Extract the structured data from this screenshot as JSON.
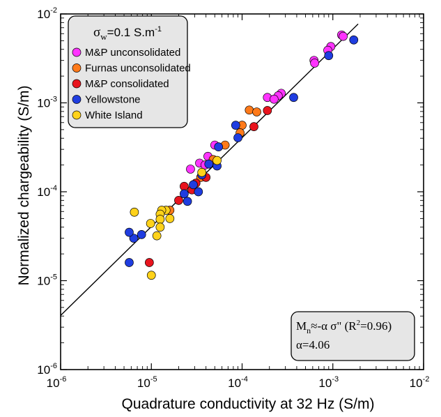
{
  "chart_data": {
    "type": "scatter",
    "x_scale": "log",
    "y_scale": "log",
    "xlim": [
      1e-06,
      0.01
    ],
    "ylim": [
      1e-06,
      0.01
    ],
    "x_ticks": [
      {
        "base": "10",
        "exp": "-6"
      },
      {
        "base": "10",
        "exp": "-5"
      },
      {
        "base": "10",
        "exp": "-4"
      },
      {
        "base": "10",
        "exp": "-3"
      },
      {
        "base": "10",
        "exp": "-2"
      }
    ],
    "y_ticks": [
      {
        "base": "10",
        "exp": "-6"
      },
      {
        "base": "10",
        "exp": "-5"
      },
      {
        "base": "10",
        "exp": "-4"
      },
      {
        "base": "10",
        "exp": "-3"
      },
      {
        "base": "10",
        "exp": "-2"
      }
    ],
    "xlabel": "Quadrature conductivity at 32 Hz (S/m)",
    "ylabel": "Normalized chargeability (S/m)",
    "legend": {
      "title_symbol": "σ",
      "title_sub": "w",
      "title_rest": "=0.1 S.m",
      "title_sup": "-1",
      "placement": "top-left"
    },
    "annotation": {
      "line1_m": "M",
      "line1_sub": "n",
      "line1_rest": "≈-α σ\" (R",
      "line1_sup": "2",
      "line1_end": "=0.96)",
      "line2": "α=4.06"
    },
    "fit_line": {
      "slope_alpha": 4.06,
      "x_range": [
        1e-06,
        0.0019
      ]
    },
    "series": [
      {
        "name": "M&P unconsolidated",
        "color": "#ff33ff",
        "points": [
          [
            0.00125,
            0.0058
          ],
          [
            0.0013,
            0.0056
          ],
          [
            0.00095,
            0.0043
          ],
          [
            0.00088,
            0.0039
          ],
          [
            0.00062,
            0.003
          ],
          [
            0.00063,
            0.0028
          ],
          [
            0.00027,
            0.00128
          ],
          [
            0.00025,
            0.0012
          ],
          [
            0.00019,
            0.00115
          ],
          [
            0.000225,
            0.0011
          ],
          [
            5e-05,
            0.000335
          ],
          [
            4.2e-05,
            0.00025
          ],
          [
            3.4e-05,
            0.00021
          ],
          [
            3.9e-05,
            0.0002
          ],
          [
            2.7e-05,
            0.00018
          ]
        ]
      },
      {
        "name": "Furnas unconsolidated",
        "color": "#ff7a1a",
        "points": [
          [
            0.00012,
            0.00083
          ],
          [
            0.000145,
            0.00079
          ],
          [
            0.0001,
            0.00056
          ],
          [
            9.5e-05,
            0.00046
          ],
          [
            6.5e-05,
            0.000335
          ],
          [
            4.8e-05,
            0.00023
          ],
          [
            3.5e-05,
            0.000145
          ],
          [
            1.6e-05,
            6.2e-05
          ]
        ]
      },
      {
        "name": "M&P consolidated",
        "color": "#e8141e",
        "points": [
          [
            0.00019,
            0.00082
          ],
          [
            0.000135,
            0.00054
          ],
          [
            4e-05,
            0.000145
          ],
          [
            3.1e-05,
            0.000125
          ],
          [
            2.8e-05,
            0.000105
          ],
          [
            2.3e-05,
            0.000115
          ],
          [
            2e-05,
            8e-05
          ],
          [
            9.5e-06,
            1.6e-05
          ]
        ]
      },
      {
        "name": "Yellowstone",
        "color": "#1f3de0",
        "points": [
          [
            0.0017,
            0.0051
          ],
          [
            0.0009,
            0.0034
          ],
          [
            0.00037,
            0.00115
          ],
          [
            8.5e-05,
            0.00056
          ],
          [
            9e-05,
            0.000405
          ],
          [
            5.5e-05,
            0.00032
          ],
          [
            4.3e-05,
            0.000205
          ],
          [
            5.3e-05,
            0.000195
          ],
          [
            3.6e-05,
            0.000155
          ],
          [
            2.9e-05,
            0.00012
          ],
          [
            3.3e-05,
            0.0001
          ],
          [
            2.3e-05,
            9.5e-05
          ],
          [
            2.5e-05,
            7.8e-05
          ],
          [
            7.8e-06,
            3.3e-05
          ],
          [
            6.4e-06,
            3e-05
          ],
          [
            5.7e-06,
            3.5e-05
          ],
          [
            5.7e-06,
            1.6e-05
          ]
        ]
      },
      {
        "name": "White Island",
        "color": "#ffd21a",
        "points": [
          [
            5.3e-05,
            0.000225
          ],
          [
            3.6e-05,
            0.000165
          ],
          [
            1.45e-05,
            6.2e-05
          ],
          [
            1.3e-05,
            6.2e-05
          ],
          [
            1.25e-05,
            5.6e-05
          ],
          [
            1.6e-05,
            5e-05
          ],
          [
            1.25e-05,
            4.9e-05
          ],
          [
            9.8e-06,
            4.4e-05
          ],
          [
            1.25e-05,
            4e-05
          ],
          [
            6.5e-06,
            5.9e-05
          ],
          [
            1.15e-05,
            3.2e-05
          ],
          [
            1e-05,
            1.15e-05
          ]
        ]
      }
    ]
  }
}
